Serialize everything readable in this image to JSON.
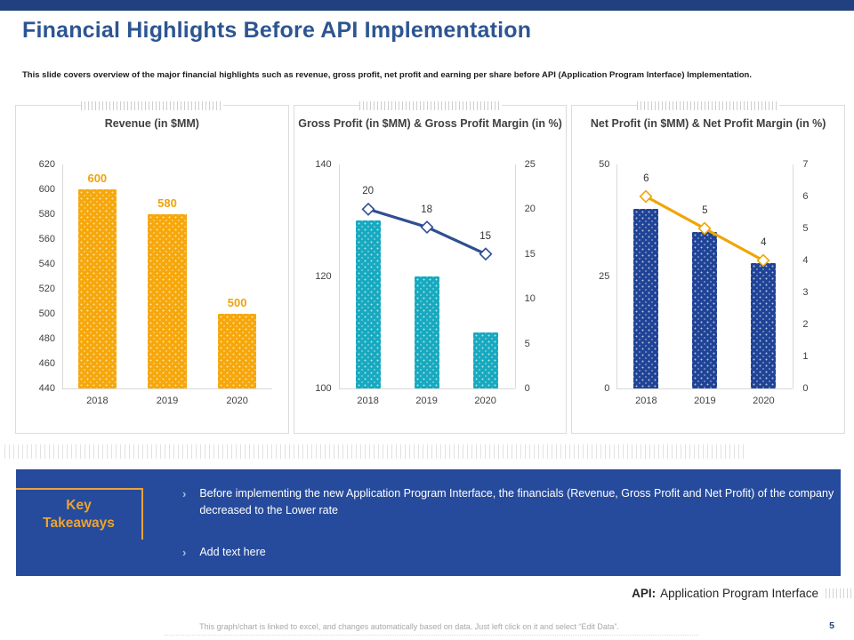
{
  "slide": {
    "title": "Financial Highlights Before API Implementation",
    "subtitle": "This slide covers overview of the major financial highlights such as revenue, gross profit, net profit and earning per share before API (Application Program Interface) Implementation.",
    "page_number": "5",
    "footer_note": "This graph/chart is linked to excel, and changes automatically based on data. Just left click on it and select “Edit Data”.",
    "api_label": "API:",
    "api_definition": "Application Program Interface"
  },
  "key_takeaways": {
    "heading": "Key Takeaways",
    "bullet_marker": "›",
    "bullets": [
      "Before implementing the new Application Program Interface, the financials (Revenue, Gross Profit and Net Profit) of the company decreased to the Lower rate",
      "Add text here"
    ]
  },
  "colors": {
    "top_bar": "#21407F",
    "title_text": "#2D5591",
    "takeaways_bg": "#264B9C",
    "takeaways_heading": "#EFA32A",
    "orange_bar": "#F6A70B",
    "teal_bar": "#17A9BF",
    "navy_bar": "#1F4396",
    "navy_line": "#2F4F8F",
    "orange_line": "#F0A502"
  },
  "chart_data": [
    {
      "type": "bar",
      "title": "Revenue (in $MM)",
      "categories": [
        "2018",
        "2019",
        "2020"
      ],
      "left_axis": {
        "min": 440,
        "max": 620,
        "step": 20
      },
      "bars": {
        "name": "Revenue (in $MM)",
        "values": [
          600,
          580,
          500
        ],
        "labels": [
          "600",
          "580",
          "500"
        ],
        "color": "#F6A70B",
        "label_color": "#F0A30A"
      },
      "grid": false,
      "legend": "none"
    },
    {
      "type": "bar+line",
      "title": "Gross Profit (in $MM) & Gross Profit Margin (in %)",
      "categories": [
        "2018",
        "2019",
        "2020"
      ],
      "left_axis": {
        "min": 100,
        "max": 140,
        "step": 20
      },
      "right_axis": {
        "min": 0,
        "max": 25,
        "step": 5
      },
      "bars": {
        "name": "Gross Profit (in $MM)",
        "values": [
          130,
          120,
          110
        ],
        "color": "#17A9BF"
      },
      "line": {
        "name": "Gross Profit Margin (in %)",
        "values": [
          20,
          18,
          15
        ],
        "labels": [
          "20",
          "18",
          "15"
        ],
        "color": "#2F4F8F"
      },
      "grid": false,
      "legend": "none"
    },
    {
      "type": "bar+line",
      "title": "Net Profit (in $MM) & Net Profit Margin (in %)",
      "categories": [
        "2018",
        "2019",
        "2020"
      ],
      "left_axis": {
        "min": 0,
        "max": 50,
        "step": 25
      },
      "right_axis": {
        "min": 0,
        "max": 7,
        "step": 1
      },
      "bars": {
        "name": "Net Profit (in $MM)",
        "values": [
          40,
          35,
          28
        ],
        "color": "#1F4396"
      },
      "line": {
        "name": "Net Profit Margin (in %)",
        "values": [
          6,
          5,
          4
        ],
        "labels": [
          "6",
          "5",
          "4"
        ],
        "color": "#F0A502"
      },
      "grid": false,
      "legend": "none"
    }
  ]
}
